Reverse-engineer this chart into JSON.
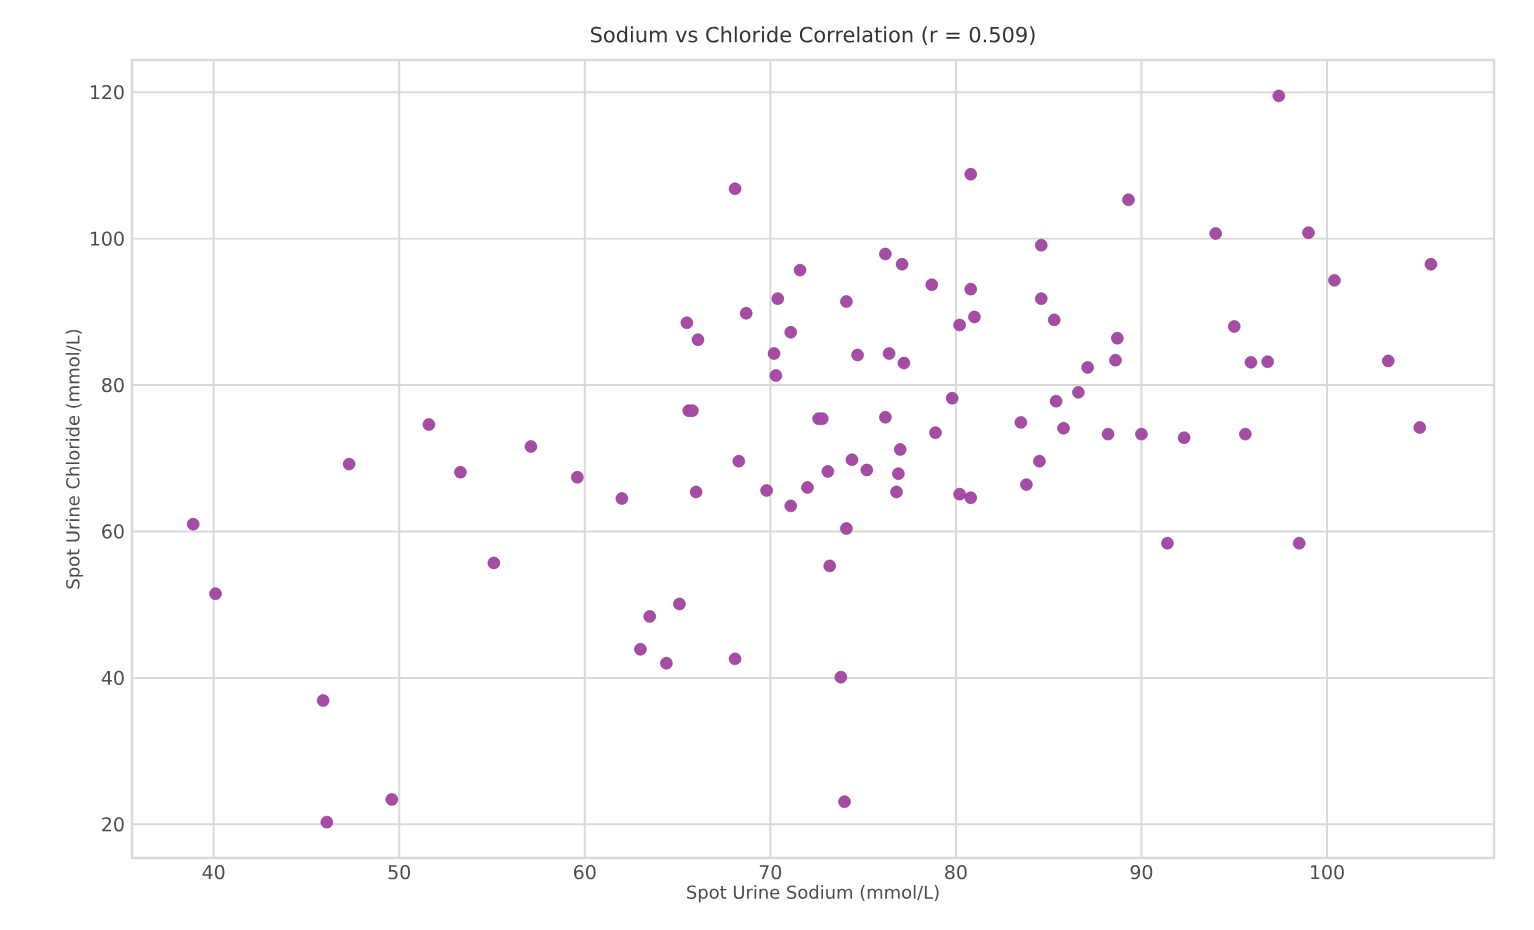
{
  "chart_data": {
    "type": "scatter",
    "title": "Sodium vs Chloride Correlation (r = 0.509)",
    "xlabel": "Spot Urine Sodium (mmol/L)",
    "ylabel": "Spot Urine Chloride (mmol/L)",
    "xlim": [
      35.6,
      109
    ],
    "ylim": [
      15.4,
      124.4
    ],
    "xticks": [
      40,
      50,
      60,
      70,
      80,
      90,
      100
    ],
    "yticks": [
      20,
      40,
      60,
      80,
      100,
      120
    ],
    "grid": true,
    "marker": "circle",
    "series": [
      {
        "color": "#a64ca6",
        "x": [
          38.9,
          40.1,
          45.9,
          46.1,
          49.6,
          47.3,
          53.3,
          57.1,
          55.1,
          59.6,
          62.0,
          63.5,
          63.0,
          64.4,
          65.1,
          66.0,
          68.3,
          68.1,
          69.8,
          71.1,
          51.6,
          65.6,
          65.8,
          65.5,
          66.1,
          68.1,
          68.7,
          70.4,
          70.2,
          70.3,
          71.1,
          71.6,
          72.6,
          72.8,
          74.1,
          74.7,
          76.2,
          77.1,
          76.4,
          77.2,
          76.2,
          78.7,
          79.8,
          80.8,
          80.8,
          81.0,
          80.2,
          84.6,
          84.6,
          85.3,
          89.3,
          88.7,
          88.6,
          87.1,
          86.6,
          85.4,
          83.5,
          85.8,
          88.2,
          90.0,
          92.3,
          95.6,
          94.0,
          99.0,
          97.4,
          95.0,
          95.9,
          96.8,
          100.4,
          103.3,
          105.6,
          105.0,
          78.9,
          72.0,
          73.1,
          74.4,
          75.2,
          77.0,
          76.9,
          76.8,
          80.2,
          80.8,
          83.8,
          84.5,
          74.1,
          73.2,
          73.8,
          74.0,
          91.4,
          98.5
        ],
        "values": [
          61.0,
          51.5,
          36.9,
          20.3,
          23.4,
          69.2,
          68.1,
          71.6,
          55.7,
          67.4,
          64.5,
          48.4,
          43.9,
          42.0,
          50.1,
          65.4,
          69.6,
          42.6,
          65.6,
          63.5,
          74.6,
          76.5,
          76.5,
          88.5,
          86.2,
          106.8,
          89.8,
          91.8,
          84.3,
          81.3,
          87.2,
          95.7,
          75.4,
          75.4,
          91.4,
          84.1,
          97.9,
          96.5,
          84.3,
          83.0,
          75.6,
          93.7,
          78.2,
          108.8,
          93.1,
          89.3,
          88.2,
          99.1,
          91.8,
          88.9,
          105.3,
          86.4,
          83.4,
          82.4,
          79.0,
          77.8,
          74.9,
          74.1,
          73.3,
          73.3,
          72.8,
          73.3,
          100.7,
          100.8,
          119.5,
          88.0,
          83.1,
          83.2,
          94.3,
          83.3,
          96.5,
          74.2,
          73.5,
          66.0,
          68.2,
          69.8,
          68.4,
          71.2,
          67.9,
          65.4,
          65.1,
          64.6,
          66.4,
          69.6,
          60.4,
          55.3,
          40.1,
          23.1,
          58.4,
          58.4
        ]
      }
    ]
  }
}
